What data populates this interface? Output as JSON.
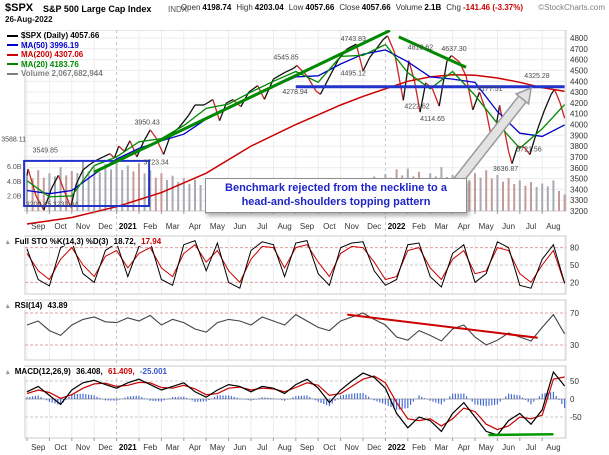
{
  "header": {
    "symbol": "$SPX",
    "name": "S&P 500 Large Cap Index",
    "exchange": "INDX",
    "date": "26-Aug-2022",
    "copyright": "©StockCharts.com",
    "quote": [
      {
        "label": "Open",
        "value": "4198.74",
        "color": "#000000"
      },
      {
        "label": "High",
        "value": "4203.04",
        "color": "#000000"
      },
      {
        "label": "Low",
        "value": "4057.66",
        "color": "#000000"
      },
      {
        "label": "Close",
        "value": "4057.66",
        "color": "#000000"
      },
      {
        "label": "Volume",
        "value": "2.1B",
        "color": "#000000"
      },
      {
        "label": "Chg",
        "value": "-141.46 (-3.37%)",
        "color": "#cc0000"
      }
    ]
  },
  "legend": {
    "items": [
      {
        "text": "$SPX (Daily) 4057.66",
        "color": "#000000"
      },
      {
        "text": "MA(50) 3996.19",
        "color": "#0000cc"
      },
      {
        "text": "MA(200) 4307.06",
        "color": "#cc0000"
      },
      {
        "text": "MA(20) 4183.76",
        "color": "#008800"
      },
      {
        "text": "Volume 2,067,682,944",
        "color": "#808080"
      }
    ]
  },
  "panels": {
    "sto": {
      "label": "Full STO %K(14,3) %D(3)",
      "k_value": "18.72,",
      "d_value": "17.94"
    },
    "rsi": {
      "label": "RSI(14)",
      "value": "43.89"
    },
    "macd": {
      "label": "MACD(12,26,9)",
      "macd_value": "36.408,",
      "signal_value": "61.409,",
      "hist_value": "-25.001"
    }
  },
  "annotation": {
    "text": "Benchmark rejected from the neckline to a head-and-shoulders topping pattern"
  },
  "icons": {
    "panel_collapse": "▴"
  },
  "chart_data": {
    "type": "line",
    "title": "$SPX S&P 500 Large Cap Index (Daily) with MA(20/50/200), Volume, Full STO, RSI and MACD panels",
    "x_axis": {
      "unit": "months from Sep 2020",
      "labels": [
        "Sep",
        "Oct",
        "Nov",
        "Dec",
        "2021",
        "Feb",
        "Mar",
        "Apr",
        "May",
        "Jun",
        "Jul",
        "Aug",
        "Sep",
        "Oct",
        "Nov",
        "Dec",
        "2022",
        "Feb",
        "Mar",
        "Apr",
        "May",
        "Jun",
        "Jul",
        "Aug"
      ],
      "year_marks": [
        4,
        16
      ]
    },
    "price_panel": {
      "ylim": [
        3200,
        4800
      ],
      "ticks": [
        3200,
        3300,
        3400,
        3500,
        3600,
        3700,
        3800,
        3900,
        4000,
        4100,
        4200,
        4300,
        4400,
        4500,
        4600,
        4700,
        4800
      ],
      "series": {
        "close": [
          [
            0,
            3530
          ],
          [
            0.05,
            3588
          ],
          [
            0.4,
            3340
          ],
          [
            0.75,
            3209
          ],
          [
            1.1,
            3410
          ],
          [
            1.4,
            3530
          ],
          [
            1.75,
            3340
          ],
          [
            1.95,
            3234
          ],
          [
            2.2,
            3450
          ],
          [
            2.5,
            3580
          ],
          [
            2.8,
            3630
          ],
          [
            3.1,
            3670
          ],
          [
            3.4,
            3700
          ],
          [
            3.7,
            3730
          ],
          [
            3.9,
            3690
          ],
          [
            4.1,
            3800
          ],
          [
            4.35,
            3750
          ],
          [
            4.6,
            3850
          ],
          [
            4.9,
            3700
          ],
          [
            5.2,
            3840
          ],
          [
            5.5,
            3950
          ],
          [
            5.75,
            3880
          ],
          [
            6.1,
            3723
          ],
          [
            6.4,
            3900
          ],
          [
            6.8,
            3975
          ],
          [
            7.2,
            4080
          ],
          [
            7.5,
            4180
          ],
          [
            7.9,
            4180
          ],
          [
            8.3,
            4230
          ],
          [
            8.6,
            4035
          ],
          [
            8.9,
            4200
          ],
          [
            9.2,
            4230
          ],
          [
            9.55,
            4165
          ],
          [
            9.9,
            4300
          ],
          [
            10.3,
            4360
          ],
          [
            10.6,
            4233
          ],
          [
            11,
            4420
          ],
          [
            11.5,
            4480
          ],
          [
            11.9,
            4520
          ],
          [
            12.05,
            4546
          ],
          [
            12.5,
            4450
          ],
          [
            12.9,
            4310
          ],
          [
            13.1,
            4279
          ],
          [
            13.5,
            4440
          ],
          [
            13.9,
            4600
          ],
          [
            14.3,
            4700
          ],
          [
            14.7,
            4744
          ],
          [
            15,
            4495
          ],
          [
            15.3,
            4620
          ],
          [
            15.6,
            4700
          ],
          [
            15.9,
            4786
          ],
          [
            16.1,
            4819
          ],
          [
            16.4,
            4670
          ],
          [
            16.8,
            4223
          ],
          [
            17.05,
            4590
          ],
          [
            17.3,
            4400
          ],
          [
            17.55,
            4115
          ],
          [
            17.8,
            4385
          ],
          [
            18.1,
            4330
          ],
          [
            18.4,
            4170
          ],
          [
            18.75,
            4590
          ],
          [
            18.95,
            4637
          ],
          [
            19.3,
            4580
          ],
          [
            19.6,
            4450
          ],
          [
            19.9,
            4135
          ],
          [
            20.2,
            4300
          ],
          [
            20.5,
            4120
          ],
          [
            20.8,
            3810
          ],
          [
            21.1,
            4178
          ],
          [
            21.5,
            3750
          ],
          [
            21.65,
            3637
          ],
          [
            21.9,
            3800
          ],
          [
            22.2,
            3790
          ],
          [
            22.45,
            3722
          ],
          [
            22.8,
            3960
          ],
          [
            23.1,
            4130
          ],
          [
            23.4,
            4280
          ],
          [
            23.55,
            4325
          ],
          [
            23.8,
            4200
          ],
          [
            24,
            4058
          ]
        ],
        "ma20": [
          [
            0,
            3480
          ],
          [
            1,
            3330
          ],
          [
            2,
            3340
          ],
          [
            3,
            3620
          ],
          [
            4,
            3700
          ],
          [
            5,
            3840
          ],
          [
            6,
            3870
          ],
          [
            7,
            3990
          ],
          [
            8,
            4150
          ],
          [
            9,
            4190
          ],
          [
            10,
            4300
          ],
          [
            11,
            4400
          ],
          [
            12,
            4490
          ],
          [
            13,
            4390
          ],
          [
            14,
            4630
          ],
          [
            15,
            4640
          ],
          [
            16,
            4740
          ],
          [
            17,
            4480
          ],
          [
            18,
            4330
          ],
          [
            19,
            4490
          ],
          [
            20,
            4270
          ],
          [
            21,
            4010
          ],
          [
            22,
            3780
          ],
          [
            23,
            3960
          ],
          [
            24,
            4184
          ]
        ],
        "ma50": [
          [
            0,
            3390
          ],
          [
            1,
            3360
          ],
          [
            2,
            3390
          ],
          [
            3,
            3540
          ],
          [
            4,
            3680
          ],
          [
            5,
            3780
          ],
          [
            6,
            3850
          ],
          [
            7,
            3910
          ],
          [
            8,
            4050
          ],
          [
            9,
            4160
          ],
          [
            10,
            4250
          ],
          [
            11,
            4350
          ],
          [
            12,
            4440
          ],
          [
            13,
            4450
          ],
          [
            14,
            4560
          ],
          [
            15,
            4650
          ],
          [
            16,
            4690
          ],
          [
            17,
            4580
          ],
          [
            18,
            4440
          ],
          [
            19,
            4420
          ],
          [
            20,
            4390
          ],
          [
            21,
            4120
          ],
          [
            22,
            3920
          ],
          [
            23,
            3890
          ],
          [
            24,
            3996
          ]
        ],
        "ma200": [
          [
            0,
            3080
          ],
          [
            2,
            3140
          ],
          [
            4,
            3240
          ],
          [
            6,
            3370
          ],
          [
            8,
            3550
          ],
          [
            10,
            3800
          ],
          [
            12,
            4000
          ],
          [
            13,
            4090
          ],
          [
            14,
            4180
          ],
          [
            15,
            4260
          ],
          [
            16,
            4330
          ],
          [
            17,
            4400
          ],
          [
            18,
            4440
          ],
          [
            19,
            4460
          ],
          [
            20,
            4455
          ],
          [
            21,
            4430
          ],
          [
            22,
            4390
          ],
          [
            23,
            4340
          ],
          [
            24,
            4307
          ]
        ]
      },
      "volume": {
        "step": 0.5,
        "values": [
          4.6,
          5.2,
          4.8,
          5.6,
          5.1,
          6.3,
          5.6,
          6.0,
          6.5,
          5.8,
          6.1,
          5.2,
          4.8,
          4.5,
          4.2,
          4.0,
          3.8,
          4.2,
          3.6,
          3.4,
          3.2,
          3.5,
          3.3,
          3.6,
          3.4,
          3.8,
          3.6,
          4.0,
          3.8,
          4.2,
          4.0,
          4.4,
          4.7,
          5.3,
          5.4,
          5.0,
          4.8,
          5.6,
          4.6,
          4.4,
          4.8,
          5.2,
          4.6,
          4.2,
          3.9,
          3.7,
          3.5,
          3.9,
          2.1
        ],
        "ticks": [
          {
            "label": "6.0B",
            "b": 6
          },
          {
            "label": "4.0B",
            "b": 4
          },
          {
            "label": "2.0B",
            "b": 2
          }
        ]
      },
      "price_labels": [
        {
          "text": "3588.11",
          "lm": -1.15,
          "lv": 3860
        },
        {
          "text": "3549.85",
          "lm": 0.25,
          "lv": 3760
        },
        {
          "text": "3209.45",
          "lm": -0.05,
          "lv": 3260
        },
        {
          "text": "3233.94",
          "lm": 1.15,
          "lv": 3260
        },
        {
          "text": "3950.43",
          "lm": 4.8,
          "lv": 4020
        },
        {
          "text": "3723.34",
          "lm": 5.2,
          "lv": 3650
        },
        {
          "text": "4545.85",
          "lm": 11.0,
          "lv": 4620
        },
        {
          "text": "4278.94",
          "lm": 11.4,
          "lv": 4300
        },
        {
          "text": "4495.12",
          "lm": 14.0,
          "lv": 4470
        },
        {
          "text": "4743.83",
          "lm": 14.0,
          "lv": 4790
        },
        {
          "text": "4818.62",
          "lm": 17.0,
          "lv": 4710
        },
        {
          "text": "4637.30",
          "lm": 18.5,
          "lv": 4700
        },
        {
          "text": "4222.62",
          "lm": 16.85,
          "lv": 4165
        },
        {
          "text": "4114.65",
          "lm": 17.55,
          "lv": 4050
        },
        {
          "text": "4177.51",
          "lm": 20.1,
          "lv": 4330
        },
        {
          "text": "3636.87",
          "lm": 20.8,
          "lv": 3590
        },
        {
          "text": "3721.56",
          "lm": 21.85,
          "lv": 3770
        },
        {
          "text": "4325.28",
          "lm": 22.2,
          "lv": 4450
        }
      ],
      "overlays": {
        "neckline": {
          "m1": 12,
          "v1": 4350,
          "m2": 24,
          "v2": 4350,
          "color": "#2233cc"
        },
        "consolidation_rect": {
          "m1": -0.13,
          "v_top": 3663,
          "m2": 5.45,
          "v_bottom": 3246,
          "color": "#2233cc"
        },
        "uptrend_line": {
          "m1": 3.0,
          "v1": 3560,
          "m2": 16.2,
          "v2": 4880,
          "color": "#008800"
        },
        "downtrend_line": {
          "m1": 16.6,
          "v1": 4810,
          "m2": 19.6,
          "v2": 4530,
          "color": "#008800"
        },
        "arrow": {
          "m1": 19.1,
          "v1": 3441,
          "m2": 22.5,
          "v2": 4338,
          "fill": "#e3e3e3",
          "stroke": "#9a9a9a"
        }
      }
    },
    "sto_panel": {
      "levels": [
        80,
        50,
        20
      ],
      "k": {
        "step": 0.5,
        "values": [
          78,
          25,
          14,
          80,
          90,
          35,
          20,
          75,
          88,
          30,
          82,
          90,
          25,
          15,
          85,
          92,
          40,
          88,
          20,
          10,
          75,
          90,
          85,
          30,
          88,
          92,
          35,
          15,
          80,
          88,
          90,
          40,
          15,
          25,
          85,
          88,
          30,
          12,
          70,
          85,
          20,
          35,
          90,
          80,
          15,
          10,
          60,
          85,
          19
        ]
      },
      "d": {
        "step": 0.5,
        "values": [
          70,
          40,
          25,
          60,
          80,
          50,
          30,
          65,
          75,
          45,
          70,
          80,
          45,
          30,
          70,
          85,
          55,
          75,
          40,
          20,
          60,
          82,
          80,
          45,
          80,
          85,
          55,
          30,
          70,
          82,
          80,
          55,
          25,
          30,
          75,
          80,
          45,
          25,
          60,
          75,
          35,
          40,
          80,
          75,
          35,
          20,
          50,
          75,
          18
        ]
      },
      "current": {
        "k": 18.72,
        "d": 17.94
      }
    },
    "rsi_panel": {
      "levels": [
        70,
        30
      ],
      "rsi": {
        "step": 0.5,
        "values": [
          55,
          60,
          48,
          42,
          55,
          62,
          65,
          59,
          58,
          64,
          60,
          67,
          55,
          62,
          58,
          50,
          46,
          58,
          62,
          60,
          55,
          65,
          60,
          55,
          68,
          60,
          52,
          48,
          60,
          65,
          70,
          62,
          55,
          40,
          36,
          48,
          42,
          35,
          50,
          55,
          40,
          30,
          36,
          45,
          40,
          35,
          52,
          68,
          44
        ]
      },
      "current": 43.89,
      "trendline": {
        "m1": 14.3,
        "v1": 68,
        "m2": 22.8,
        "v2": 39,
        "color": "#cc0000"
      }
    },
    "macd_panel": {
      "levels": [
        50,
        0,
        -50
      ],
      "macd": {
        "step": 0.5,
        "values": [
          20,
          35,
          10,
          -15,
          25,
          45,
          52,
          40,
          30,
          45,
          55,
          40,
          25,
          35,
          45,
          20,
          5,
          25,
          40,
          35,
          20,
          35,
          30,
          15,
          40,
          55,
          30,
          -10,
          25,
          50,
          72,
          60,
          30,
          -40,
          -80,
          -50,
          -60,
          -90,
          -40,
          -10,
          -50,
          -90,
          -100,
          -60,
          -40,
          -70,
          -30,
          75,
          36
        ]
      },
      "signal": {
        "step": 0.5,
        "values": [
          15,
          25,
          18,
          2,
          12,
          30,
          42,
          44,
          35,
          38,
          46,
          45,
          32,
          30,
          38,
          28,
          12,
          15,
          30,
          33,
          25,
          30,
          28,
          20,
          32,
          45,
          38,
          10,
          15,
          35,
          55,
          64,
          45,
          -10,
          -55,
          -60,
          -55,
          -75,
          -55,
          -25,
          -35,
          -70,
          -85,
          -75,
          -50,
          -55,
          -45,
          55,
          61
        ]
      },
      "current": {
        "macd": 36.408,
        "signal": 61.409,
        "hist": -25.001
      },
      "support_line": {
        "m1": 20.6,
        "v1": -100,
        "m2": 23.5,
        "v2": -98,
        "color": "#009900"
      }
    }
  }
}
